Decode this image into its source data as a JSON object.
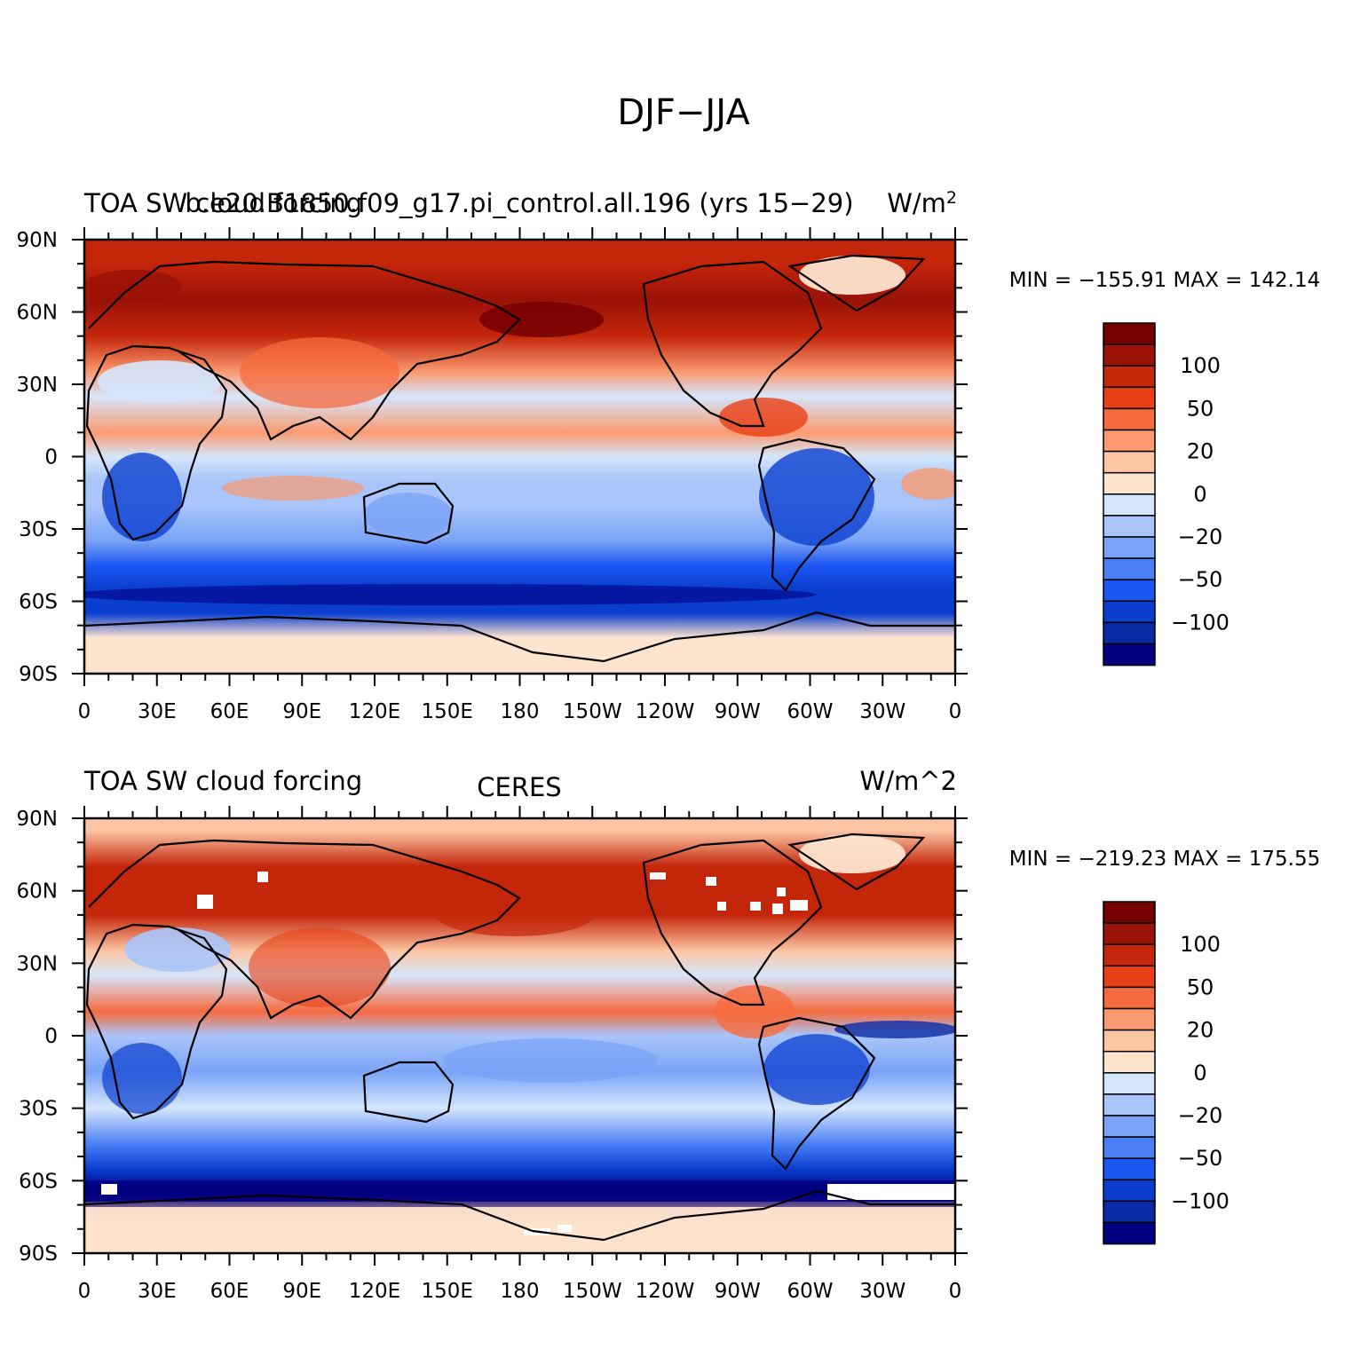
{
  "figure_title": "DJF−JJA",
  "colors": {
    "levels": [
      "#000080",
      "#0a2aa6",
      "#0a3ecf",
      "#1c56f0",
      "#4a7ff5",
      "#7aa3f7",
      "#a9c5fa",
      "#d5e6fc",
      "#fde4cf",
      "#fcc6a4",
      "#fa9a70",
      "#f66b3e",
      "#e84016",
      "#c4260a",
      "#9a1208",
      "#750000"
    ],
    "land_outline": "#000000",
    "missing": "#ffffff"
  },
  "x_ticks": [
    "0",
    "30E",
    "60E",
    "90E",
    "120E",
    "150E",
    "180",
    "150W",
    "120W",
    "90W",
    "60W",
    "30W",
    "0"
  ],
  "y_ticks": [
    "90N",
    "60N",
    "30N",
    "0",
    "30S",
    "60S",
    "90S"
  ],
  "panels": [
    {
      "id": "model",
      "left_title": "TOA SW cloud forcing",
      "center_title": "b.e20.B1850.f09_g17.pi_control.all.196 (yrs 15−29)",
      "right_title_base": "W/m",
      "right_title_sup": "2",
      "stats": "MIN = −155.91  MAX = 142.14",
      "colorbar_labels": [
        "100",
        "50",
        "20",
        "0",
        "−20",
        "−50",
        "−100"
      ]
    },
    {
      "id": "obs",
      "left_title": "TOA SW cloud forcing",
      "center_title": "CERES",
      "right_title": "W/m^2",
      "stats": "MIN = −219.23  MAX = 175.55",
      "colorbar_labels": [
        "100",
        "50",
        "20",
        "0",
        "−20",
        "−50",
        "−100"
      ]
    }
  ],
  "chart_data": [
    {
      "type": "heatmap",
      "title": "TOA SW cloud forcing — b.e20.B1850.f09_g17.pi_control.all.196 (yrs 15−29), DJF−JJA",
      "units": "W/m^2",
      "x_range": [
        0,
        360
      ],
      "y_range": [
        -90,
        90
      ],
      "min": -155.91,
      "max": 142.14,
      "latitude_bands": [
        {
          "lat": 80,
          "value": 55
        },
        {
          "lat": 65,
          "value": 90
        },
        {
          "lat": 50,
          "value": 60
        },
        {
          "lat": 35,
          "value": 15
        },
        {
          "lat": 25,
          "value": -15
        },
        {
          "lat": 10,
          "value": 20
        },
        {
          "lat": 0,
          "value": -15
        },
        {
          "lat": -10,
          "value": -25
        },
        {
          "lat": -20,
          "value": -20
        },
        {
          "lat": -35,
          "value": -40
        },
        {
          "lat": -45,
          "value": -80
        },
        {
          "lat": -55,
          "value": -110
        },
        {
          "lat": -65,
          "value": -100
        },
        {
          "lat": -75,
          "value": -5
        }
      ]
    },
    {
      "type": "heatmap",
      "title": "TOA SW cloud forcing — CERES, DJF−JJA",
      "units": "W/m^2",
      "x_range": [
        0,
        360
      ],
      "y_range": [
        -90,
        90
      ],
      "min": -219.23,
      "max": 175.55,
      "latitude_bands": [
        {
          "lat": 85,
          "value": 10
        },
        {
          "lat": 70,
          "value": 70
        },
        {
          "lat": 50,
          "value": 65
        },
        {
          "lat": 35,
          "value": 10
        },
        {
          "lat": 25,
          "value": -12
        },
        {
          "lat": 10,
          "value": 30
        },
        {
          "lat": 0,
          "value": -25
        },
        {
          "lat": -15,
          "value": -30
        },
        {
          "lat": -30,
          "value": -15
        },
        {
          "lat": -45,
          "value": -60
        },
        {
          "lat": -55,
          "value": -110
        },
        {
          "lat": -65,
          "value": -150
        },
        {
          "lat": -78,
          "value": 10
        }
      ]
    }
  ]
}
